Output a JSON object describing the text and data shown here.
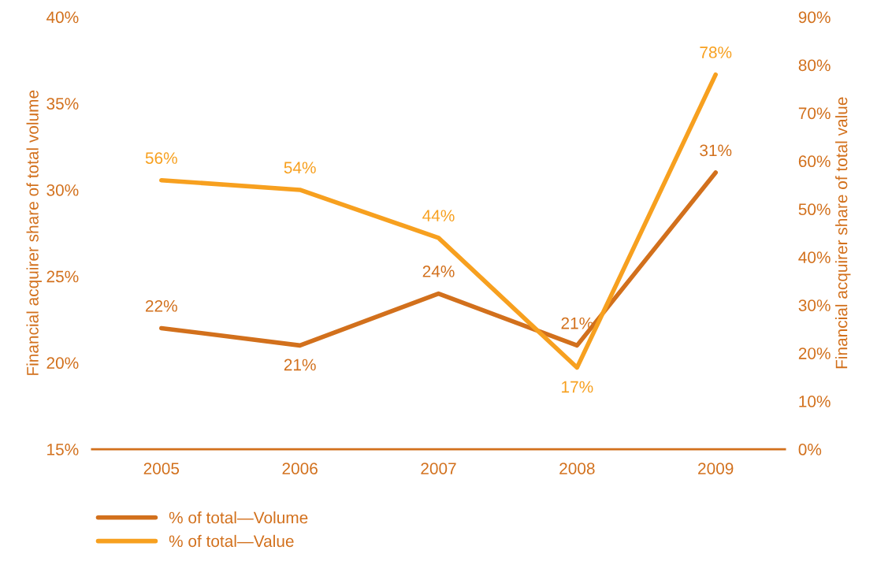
{
  "chart_data": {
    "type": "line",
    "categories": [
      "2005",
      "2006",
      "2007",
      "2008",
      "2009"
    ],
    "ylabel": "Financial acquirer share of total volume",
    "y2label": "Financial acquirer share of total value",
    "series": [
      {
        "name": "% of total—Volume",
        "color": "#d2701c",
        "values": [
          22,
          21,
          24,
          21,
          31
        ],
        "value_labels": [
          "22%",
          "21%",
          "24%",
          "21%",
          "31%"
        ]
      },
      {
        "name": "% of total—Value",
        "color": "#f7a01f",
        "axis": "y2",
        "values": [
          56,
          54,
          44,
          17,
          78
        ],
        "value_labels": [
          "56%",
          "54%",
          "44%",
          "17%",
          "78%"
        ]
      }
    ],
    "ylim": [
      15,
      40
    ],
    "yticks": [
      {
        "value": 15,
        "label": "15%"
      },
      {
        "value": 20,
        "label": "20%"
      },
      {
        "value": 25,
        "label": "25%"
      },
      {
        "value": 30,
        "label": "30%"
      },
      {
        "value": 35,
        "label": "35%"
      },
      {
        "value": 40,
        "label": "40%"
      }
    ],
    "y2lim": [
      0,
      90
    ],
    "y2ticks": [
      {
        "value": 0,
        "label": "0%"
      },
      {
        "value": 10,
        "label": "10%"
      },
      {
        "value": 20,
        "label": "20%"
      },
      {
        "value": 30,
        "label": "30%"
      },
      {
        "value": 40,
        "label": "40%"
      },
      {
        "value": 50,
        "label": "50%"
      },
      {
        "value": 60,
        "label": "60%"
      },
      {
        "value": 70,
        "label": "70%"
      },
      {
        "value": 80,
        "label": "80%"
      },
      {
        "value": 90,
        "label": "90%"
      }
    ],
    "grid": false,
    "legend": "bottom",
    "marker": "none",
    "line_style": "solid"
  }
}
